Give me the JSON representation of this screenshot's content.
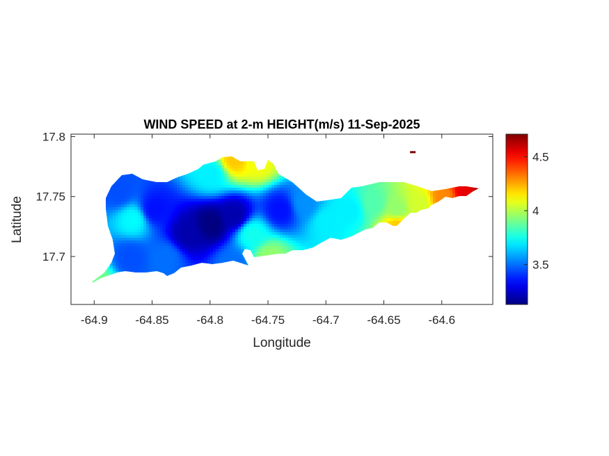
{
  "chart_data": {
    "type": "heatmap",
    "title": "WIND SPEED at 2-m HEIGHT(m/s) 11-Sep-2025",
    "xlabel": "Longitude",
    "ylabel": "Latitude",
    "xlim": [
      -64.92,
      -64.556
    ],
    "ylim": [
      17.66,
      17.802
    ],
    "xticks": [
      -64.9,
      -64.85,
      -64.8,
      -64.75,
      -64.7,
      -64.65,
      -64.6
    ],
    "xtick_labels": [
      "-64.9",
      "-64.85",
      "-64.8",
      "-64.75",
      "-64.7",
      "-64.65",
      "-64.6"
    ],
    "yticks": [
      17.7,
      17.75,
      17.8
    ],
    "ytick_labels": [
      "17.7",
      "17.75",
      "17.8"
    ],
    "colormap": "jet",
    "clim": [
      3.13,
      4.71
    ],
    "colorbar_ticks": [
      3.5,
      4,
      4.5
    ],
    "colorbar_tick_labels": [
      "3.5",
      "4",
      "4.5"
    ],
    "grid": false,
    "samples": [
      {
        "lon": -64.8,
        "lat": 17.728,
        "value": 3.13
      },
      {
        "lon": -64.82,
        "lat": 17.72,
        "value": 3.2
      },
      {
        "lon": -64.78,
        "lat": 17.735,
        "value": 3.2
      },
      {
        "lon": -64.85,
        "lat": 17.74,
        "value": 3.35
      },
      {
        "lon": -64.867,
        "lat": 17.732,
        "value": 3.72
      },
      {
        "lon": -64.88,
        "lat": 17.755,
        "value": 3.45
      },
      {
        "lon": -64.87,
        "lat": 17.7,
        "value": 3.45
      },
      {
        "lon": -64.84,
        "lat": 17.7,
        "value": 3.5
      },
      {
        "lon": -64.78,
        "lat": 17.782,
        "value": 4.2
      },
      {
        "lon": -64.8,
        "lat": 17.77,
        "value": 3.7
      },
      {
        "lon": -64.76,
        "lat": 17.78,
        "value": 4.1
      },
      {
        "lon": -64.765,
        "lat": 17.72,
        "value": 3.75
      },
      {
        "lon": -64.74,
        "lat": 17.74,
        "value": 3.35
      },
      {
        "lon": -64.72,
        "lat": 17.745,
        "value": 3.55
      },
      {
        "lon": -64.75,
        "lat": 17.7,
        "value": 3.95
      },
      {
        "lon": -64.7,
        "lat": 17.73,
        "value": 3.7
      },
      {
        "lon": -64.68,
        "lat": 17.74,
        "value": 3.7
      },
      {
        "lon": -64.66,
        "lat": 17.745,
        "value": 3.85
      },
      {
        "lon": -64.64,
        "lat": 17.74,
        "value": 3.95
      },
      {
        "lon": -64.62,
        "lat": 17.745,
        "value": 4.05
      },
      {
        "lon": -64.64,
        "lat": 17.727,
        "value": 4.2
      },
      {
        "lon": -64.6,
        "lat": 17.75,
        "value": 4.3
      },
      {
        "lon": -64.58,
        "lat": 17.755,
        "value": 4.55
      },
      {
        "lon": -64.568,
        "lat": 17.755,
        "value": 4.62
      },
      {
        "lon": -64.625,
        "lat": 17.787,
        "value": 4.71
      },
      {
        "lon": -64.9,
        "lat": 17.68,
        "value": 3.9
      },
      {
        "lon": -64.78,
        "lat": 17.695,
        "value": 3.5
      }
    ]
  }
}
